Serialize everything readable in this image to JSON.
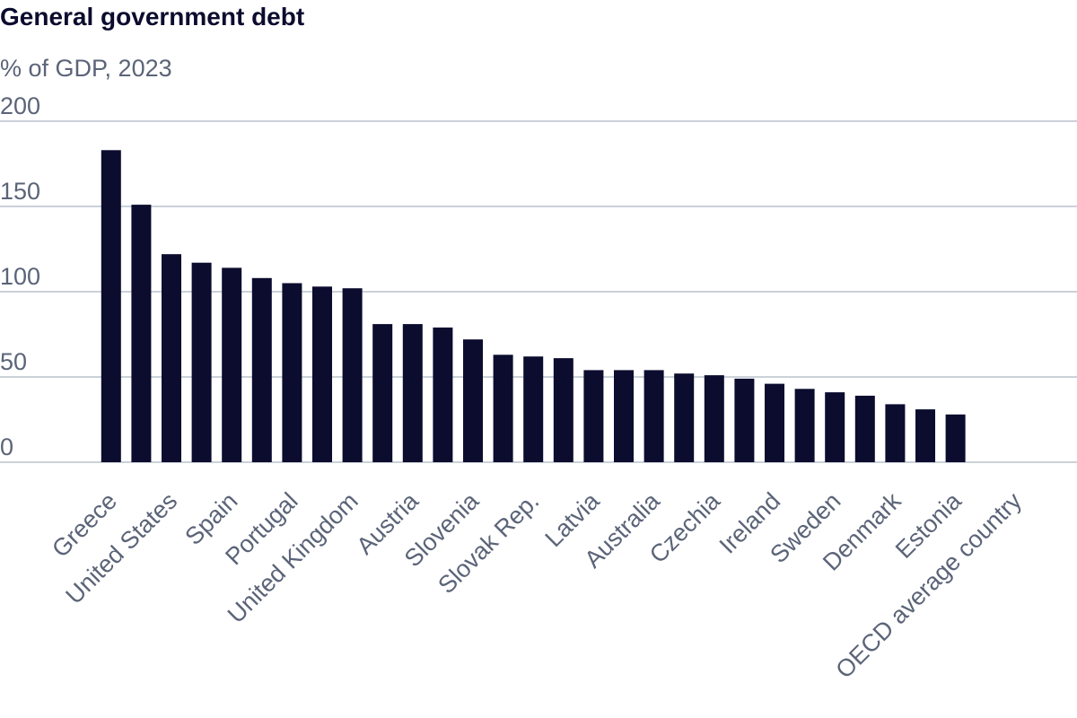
{
  "chart_data": {
    "type": "bar",
    "title": "General government debt",
    "subtitle": "% of GDP, 2023",
    "categories": [
      "Greece",
      null,
      "United States",
      null,
      "Spain",
      null,
      "Portugal",
      null,
      "United Kingdom",
      null,
      "Austria",
      null,
      "Slovenia",
      null,
      "Slovak Rep.",
      null,
      "Latvia",
      null,
      "Australia",
      null,
      "Czechia",
      null,
      "Ireland",
      null,
      "Sweden",
      null,
      "Denmark",
      null,
      "Estonia",
      null,
      "OECD average country"
    ],
    "values": [
      183,
      151,
      122,
      117,
      114,
      108,
      105,
      103,
      102,
      81,
      81,
      79,
      72,
      63,
      62,
      61,
      54,
      54,
      54,
      52,
      51,
      49,
      46,
      43,
      41,
      39,
      34,
      31,
      28,
      null,
      null
    ],
    "color": "#0b0c2e",
    "ylim": [
      0,
      200
    ],
    "yticks": [
      0,
      50,
      100,
      150,
      200
    ],
    "grid": true
  }
}
